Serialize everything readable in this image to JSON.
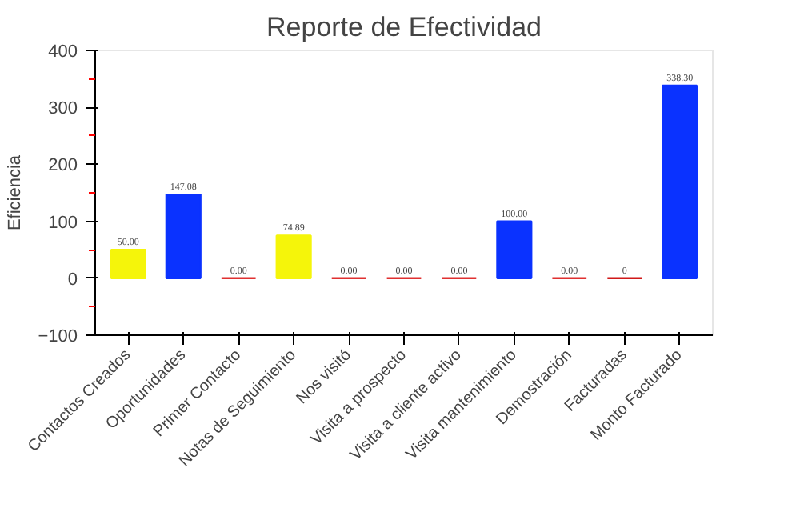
{
  "chart_data": {
    "type": "bar",
    "title": "Reporte de Efectividad",
    "ylabel": "Eficiencia",
    "categories": [
      "Contactos Creados",
      "Oportunidades",
      "Primer Contacto",
      "Notas de Seguimiento",
      "Nos visitó",
      "Visita a prospecto",
      "Visita a cliente activo",
      "Visita mantenimiento",
      "Demostración",
      "Facturadas",
      "Monto Facturado"
    ],
    "values": [
      50.0,
      147.08,
      0.0,
      74.89,
      0.0,
      0.0,
      0.0,
      100.0,
      0.0,
      0,
      338.3
    ],
    "colors": [
      "#f5f50a",
      "#0a32ff",
      "#e03030",
      "#f5f50a",
      "#e03030",
      "#e03030",
      "#e03030",
      "#0a32ff",
      "#e03030",
      "#d01818",
      "#0a32ff"
    ],
    "value_labels": [
      "50.00",
      "147.08",
      "0.00",
      "74.89",
      "0.00",
      "0.00",
      "0.00",
      "100.00",
      "0.00",
      "0",
      "338.30"
    ],
    "ylim": [
      -100,
      400
    ],
    "yticks": [
      -100,
      0,
      100,
      200,
      300,
      400
    ],
    "grid": false
  }
}
